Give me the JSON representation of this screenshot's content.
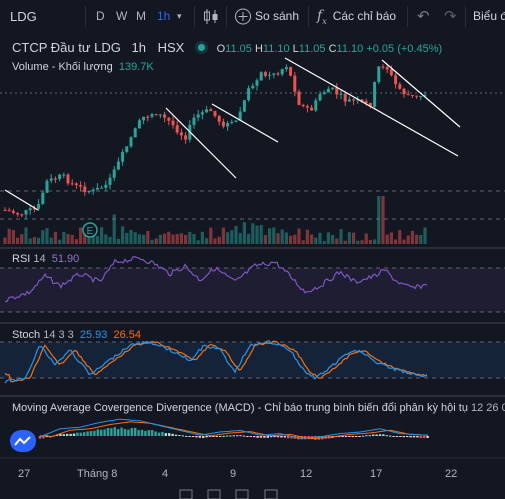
{
  "toolbar": {
    "symbol": "LDG",
    "intervals": [
      "D",
      "W",
      "M",
      "1h"
    ],
    "active_interval": "1h",
    "compare_label": "So sánh",
    "indicators_label": "Các chỉ báo",
    "chart_types_label": "Biểu đ"
  },
  "legend": {
    "title": "CTCP Đầu tư LDG",
    "interval": "1h",
    "exchange": "HSX",
    "o_label": "O",
    "o_value": "11.05",
    "h_label": "H",
    "h_value": "11.10",
    "l_label": "L",
    "l_value": "11.05",
    "c_label": "C",
    "c_value": "11.10",
    "change": "+0.05 (+0.45%)"
  },
  "volume": {
    "label": "Volume - Khối lượng",
    "value": "139.7K"
  },
  "rsi": {
    "label": "RSI",
    "param": "14",
    "value": "51.90"
  },
  "stoch": {
    "label": "Stoch",
    "params": "14 3 3",
    "k_value": "25.93",
    "d_value": "26.54"
  },
  "macd": {
    "label": "Moving Average Covergence Divergence (MACD) - Chỉ báo trung bình biến đổi phân kỳ hội tụ",
    "params": "12 26 0"
  },
  "time_axis": [
    "27",
    "Tháng 8",
    "4",
    "9",
    "12",
    "17",
    "22"
  ],
  "colors": {
    "bg": "#131722",
    "up": "#26a69a",
    "down": "#ef5350",
    "grid_dash": "#9598a1",
    "rsi": "#7e57c2",
    "stoch_k": "#2196f3",
    "stoch_d": "#ff6d00",
    "accent": "#2962ff"
  }
}
